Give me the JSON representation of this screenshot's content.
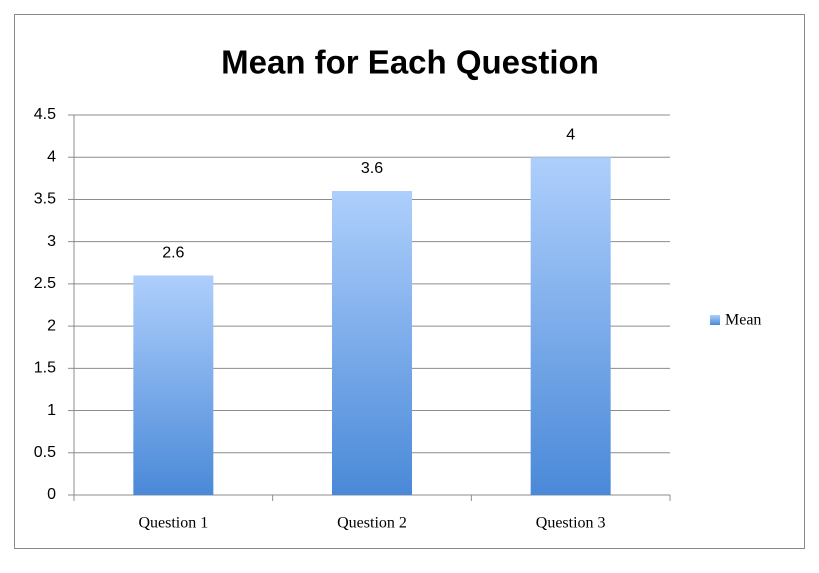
{
  "chart_data": {
    "type": "bar",
    "title": "Mean for Each Question",
    "categories": [
      "Question 1",
      "Question 2",
      "Question 3"
    ],
    "series": [
      {
        "name": "Mean",
        "gradient": [
          "#aecffc",
          "#4a89d8"
        ],
        "values": [
          2.6,
          3.6,
          4
        ]
      }
    ],
    "ylim": [
      0,
      4.5
    ],
    "yticks": [
      0,
      0.5,
      1,
      1.5,
      2,
      2.5,
      3,
      3.5,
      4,
      4.5
    ],
    "grid": true,
    "legend": "right",
    "data_labels": true
  }
}
